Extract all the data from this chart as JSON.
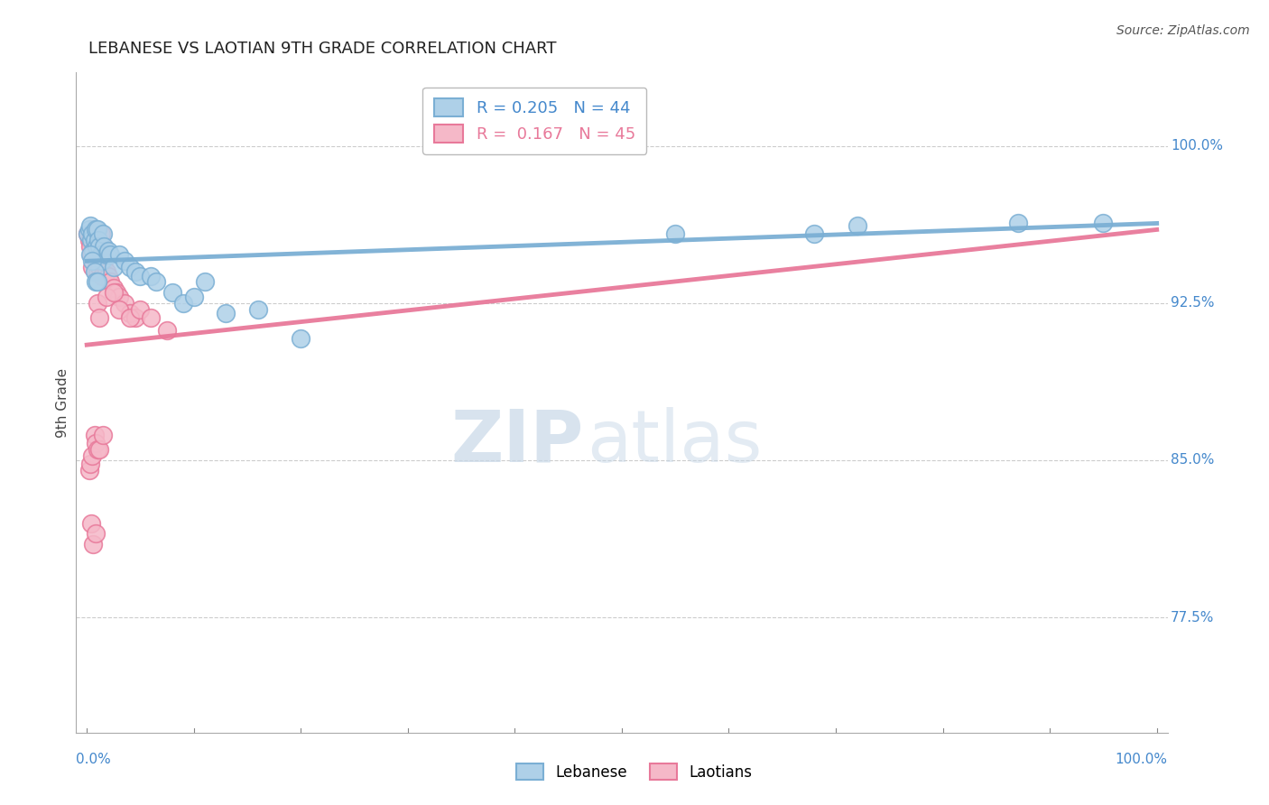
{
  "title": "LEBANESE VS LAOTIAN 9TH GRADE CORRELATION CHART",
  "source": "Source: ZipAtlas.com",
  "ylabel_label": "9th Grade",
  "ytick_labels_shown": [
    0.775,
    0.85,
    0.925,
    1.0
  ],
  "ytick_labels_text": [
    "77.5%",
    "85.0%",
    "92.5%",
    "100.0%"
  ],
  "ylim": [
    0.72,
    1.035
  ],
  "xlim": [
    -0.01,
    1.01
  ],
  "grid_yticks": [
    0.775,
    0.85,
    0.925,
    1.0
  ],
  "blue_color": "#7BAFD4",
  "blue_fill": "#AED0E8",
  "pink_color": "#E8799A",
  "pink_fill": "#F5B8C8",
  "legend_blue_label": "R = 0.205   N = 44",
  "legend_pink_label": "R =  0.167   N = 45",
  "watermark_zip": "ZIP",
  "watermark_atlas": "atlas",
  "background_color": "#FFFFFF",
  "blue_x": [
    0.001,
    0.002,
    0.003,
    0.004,
    0.005,
    0.006,
    0.007,
    0.008,
    0.009,
    0.01,
    0.011,
    0.012,
    0.013,
    0.014,
    0.015,
    0.016,
    0.018,
    0.02,
    0.022,
    0.025,
    0.03,
    0.035,
    0.04,
    0.045,
    0.05,
    0.06,
    0.065,
    0.08,
    0.09,
    0.1,
    0.11,
    0.13,
    0.16,
    0.2,
    0.55,
    0.68,
    0.72,
    0.87,
    0.95,
    0.003,
    0.005,
    0.007,
    0.008,
    0.01
  ],
  "blue_y": [
    0.958,
    0.96,
    0.962,
    0.955,
    0.958,
    0.95,
    0.955,
    0.96,
    0.952,
    0.96,
    0.955,
    0.952,
    0.948,
    0.945,
    0.958,
    0.952,
    0.948,
    0.95,
    0.948,
    0.942,
    0.948,
    0.945,
    0.942,
    0.94,
    0.938,
    0.938,
    0.935,
    0.93,
    0.925,
    0.928,
    0.935,
    0.92,
    0.922,
    0.908,
    0.958,
    0.958,
    0.962,
    0.963,
    0.963,
    0.948,
    0.945,
    0.94,
    0.935,
    0.935
  ],
  "pink_x": [
    0.001,
    0.002,
    0.003,
    0.004,
    0.005,
    0.006,
    0.007,
    0.008,
    0.009,
    0.01,
    0.011,
    0.012,
    0.013,
    0.014,
    0.015,
    0.016,
    0.018,
    0.02,
    0.022,
    0.025,
    0.028,
    0.03,
    0.035,
    0.04,
    0.045,
    0.002,
    0.003,
    0.005,
    0.007,
    0.008,
    0.01,
    0.012,
    0.015,
    0.004,
    0.006,
    0.008,
    0.01,
    0.012,
    0.018,
    0.025,
    0.03,
    0.04,
    0.05,
    0.06,
    0.075
  ],
  "pink_y": [
    0.958,
    0.955,
    0.952,
    0.948,
    0.942,
    0.958,
    0.96,
    0.95,
    0.945,
    0.94,
    0.948,
    0.942,
    0.958,
    0.938,
    0.952,
    0.945,
    0.94,
    0.938,
    0.935,
    0.932,
    0.93,
    0.928,
    0.925,
    0.92,
    0.918,
    0.845,
    0.848,
    0.852,
    0.862,
    0.858,
    0.855,
    0.855,
    0.862,
    0.82,
    0.81,
    0.815,
    0.925,
    0.918,
    0.928,
    0.93,
    0.922,
    0.918,
    0.922,
    0.918,
    0.912
  ],
  "xtick_positions": [
    0.0,
    0.1,
    0.2,
    0.3,
    0.4,
    0.5,
    0.6,
    0.7,
    0.8,
    0.9,
    1.0
  ]
}
